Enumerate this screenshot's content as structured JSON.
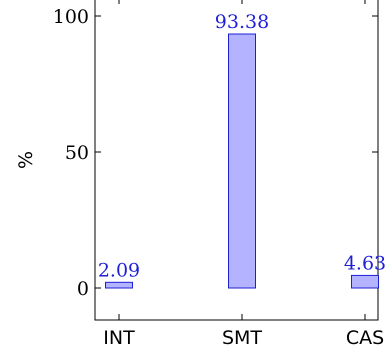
{
  "chart_data": {
    "type": "bar",
    "categories": [
      "INT",
      "SMT",
      "CAS"
    ],
    "values": [
      2.09,
      93.38,
      4.63
    ],
    "data_labels": [
      "2.09",
      "93.38",
      "4.63"
    ],
    "title": "",
    "xlabel": "",
    "ylabel": "%",
    "ylim": [
      0,
      100
    ],
    "yticks": [
      0,
      50,
      100
    ],
    "ytick_labels": [
      "0",
      "50",
      "100"
    ],
    "grid": false,
    "colors": {
      "bar_fill": "#b3b3ff",
      "bar_stroke": "#1f1fd6",
      "data_label": "#1f1fd6",
      "axis": "#000000"
    }
  }
}
